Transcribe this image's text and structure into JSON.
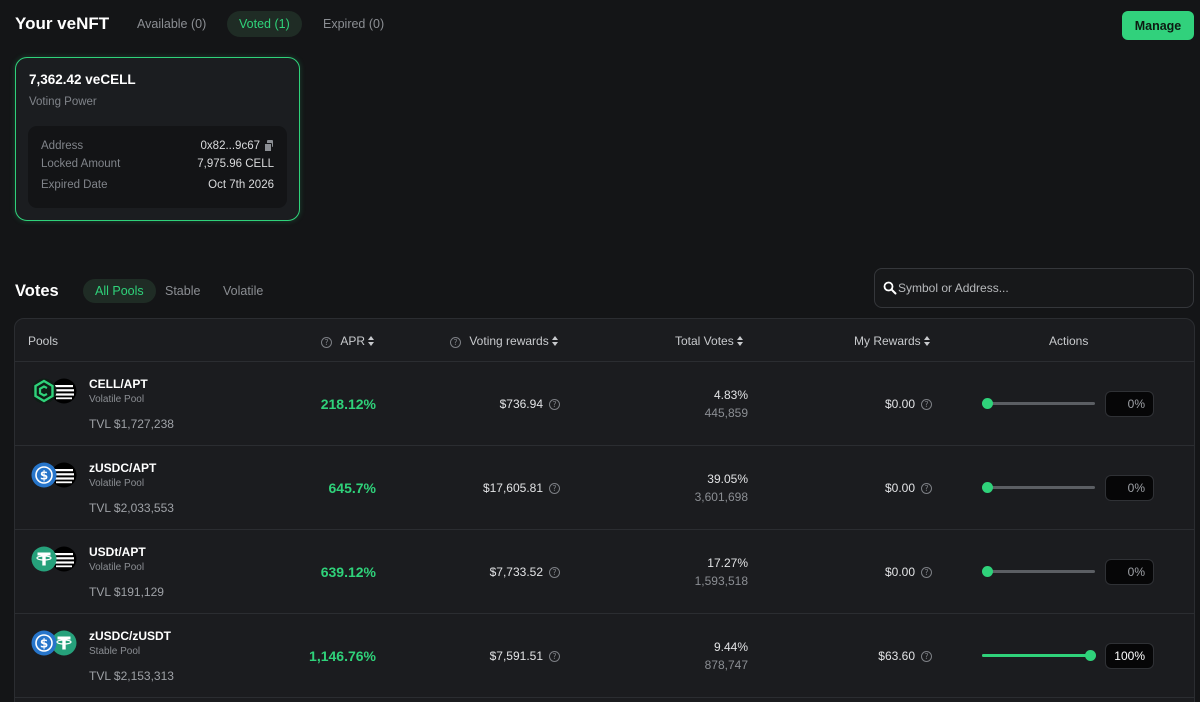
{
  "header": {
    "title": "Your veNFT",
    "tabs": [
      "Available (0)",
      "Voted (1)",
      "Expired (0)"
    ],
    "active_tab": "Voted (1)",
    "manage_label": "Manage"
  },
  "nft": {
    "amount": "7,362.42 veCELL",
    "subtitle": "Voting Power",
    "address_label": "Address",
    "address_value": "0x82...9c67",
    "locked_label": "Locked Amount",
    "locked_value": "7,975.96 CELL",
    "expired_label": "Expired Date",
    "expired_value": "Oct 7th 2026"
  },
  "votes": {
    "title": "Votes",
    "filters": [
      "All Pools",
      "Stable",
      "Volatile"
    ],
    "active_filter": "All Pools",
    "search_placeholder": "Symbol or Address..."
  },
  "table": {
    "columns": {
      "pools": "Pools",
      "apr": "APR",
      "voting_rewards": "Voting rewards",
      "total_votes": "Total Votes",
      "my_rewards": "My Rewards",
      "actions": "Actions"
    },
    "rows": [
      {
        "pair": "CELL/APT",
        "type": "Volatile Pool",
        "tvl": "TVL $1,727,238",
        "apr": "218.12%",
        "voting_rewards": "$736.94",
        "total_votes_pct": "4.83%",
        "total_votes": "445,859",
        "my_rewards": "$0.00",
        "allocation": "0%",
        "allocation_value": 0,
        "icons": [
          "cell-icon",
          "aptos-icon"
        ]
      },
      {
        "pair": "zUSDC/APT",
        "type": "Volatile Pool",
        "tvl": "TVL $2,033,553",
        "apr": "645.7%",
        "voting_rewards": "$17,605.81",
        "total_votes_pct": "39.05%",
        "total_votes": "3,601,698",
        "my_rewards": "$0.00",
        "allocation": "0%",
        "allocation_value": 0,
        "icons": [
          "usdc-icon",
          "aptos-icon"
        ]
      },
      {
        "pair": "USDt/APT",
        "type": "Volatile Pool",
        "tvl": "TVL $191,129",
        "apr": "639.12%",
        "voting_rewards": "$7,733.52",
        "total_votes_pct": "17.27%",
        "total_votes": "1,593,518",
        "my_rewards": "$0.00",
        "allocation": "0%",
        "allocation_value": 0,
        "icons": [
          "usdt-icon",
          "aptos-icon"
        ]
      },
      {
        "pair": "zUSDC/zUSDT",
        "type": "Stable Pool",
        "tvl": "TVL $2,153,313",
        "apr": "1,146.76%",
        "voting_rewards": "$7,591.51",
        "total_votes_pct": "9.44%",
        "total_votes": "878,747",
        "my_rewards": "$63.60",
        "allocation": "100%",
        "allocation_value": 100,
        "icons": [
          "usdc-icon",
          "usdt-icon"
        ]
      }
    ]
  },
  "colors": {
    "accent": "#2fd27a",
    "background": "#141517",
    "card": "#1b1c1f"
  }
}
